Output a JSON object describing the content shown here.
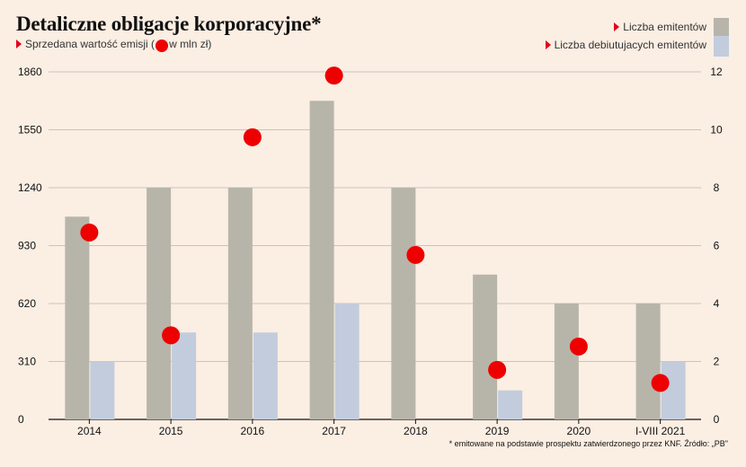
{
  "title": "Detaliczne obligacje korporacyjne*",
  "subtitle": {
    "prefix": "Sprzedana wartość emisji (",
    "suffix": "w mln zł)"
  },
  "legend": {
    "issuers": "Liczba emitentów",
    "debut": "Liczba debiutujacych emitentów"
  },
  "colors": {
    "issuers": "#b7b5a9",
    "debut": "#c2ccdd",
    "value": "#ee0000",
    "background": "#fbeee3",
    "marker": "#e2001a"
  },
  "footnote": "* emitowane na podstawie prospektu zatwierdzonego przez KNF. Źródło: „PB\"",
  "chart_data": {
    "type": "bar",
    "categories": [
      "2014",
      "2015",
      "2016",
      "2017",
      "2018",
      "2019",
      "2020",
      "I-VIII 2021"
    ],
    "series": [
      {
        "name": "Liczba emitentów",
        "type": "bar",
        "axis": "right",
        "values": [
          7,
          8,
          8,
          11,
          8,
          5,
          4,
          4
        ]
      },
      {
        "name": "Liczba debiutujacych emitentów",
        "type": "bar",
        "axis": "right",
        "values": [
          2,
          3,
          3,
          4,
          0,
          1,
          0,
          2
        ]
      },
      {
        "name": "Sprzedana wartość emisji (w mln zł)",
        "type": "scatter",
        "axis": "left",
        "values": [
          1000,
          450,
          1510,
          1840,
          880,
          265,
          390,
          195
        ]
      }
    ],
    "left_axis": {
      "ticks": [
        0,
        310,
        620,
        930,
        1240,
        1550,
        1860
      ],
      "range": [
        0,
        1860
      ]
    },
    "right_axis": {
      "ticks": [
        0,
        2,
        4,
        6,
        8,
        10,
        12
      ],
      "range": [
        0,
        12
      ]
    },
    "grid": true
  }
}
